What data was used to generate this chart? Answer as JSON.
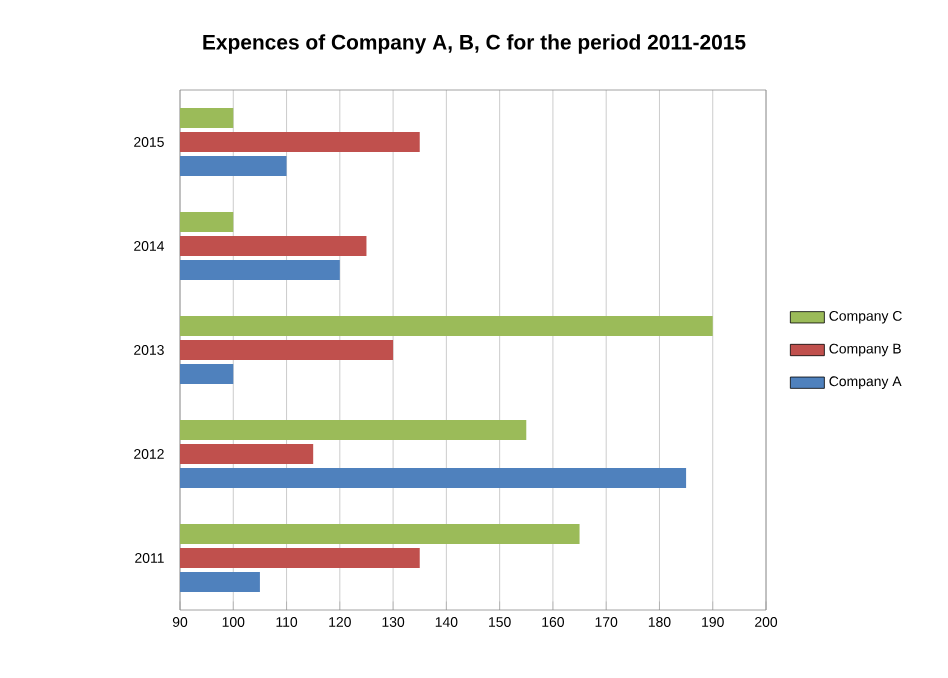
{
  "chart_data": {
    "type": "bar",
    "orientation": "horizontal",
    "title": "Expences of Company A, B, C for the period 2011-2015",
    "categories": [
      "2015",
      "2014",
      "2013",
      "2012",
      "2011"
    ],
    "series": [
      {
        "name": "Company A",
        "color": "#4f81bd",
        "values": [
          110,
          120,
          100,
          185,
          105
        ]
      },
      {
        "name": "Company B",
        "color": "#c0504d",
        "values": [
          135,
          125,
          130,
          115,
          135
        ]
      },
      {
        "name": "Company C",
        "color": "#9bbb59",
        "values": [
          100,
          100,
          190,
          155,
          165
        ]
      }
    ],
    "xlim": [
      90,
      200
    ],
    "xticks": [
      90,
      100,
      110,
      120,
      130,
      140,
      150,
      160,
      170,
      180,
      190,
      200
    ],
    "grid": "x",
    "legend": "right"
  }
}
